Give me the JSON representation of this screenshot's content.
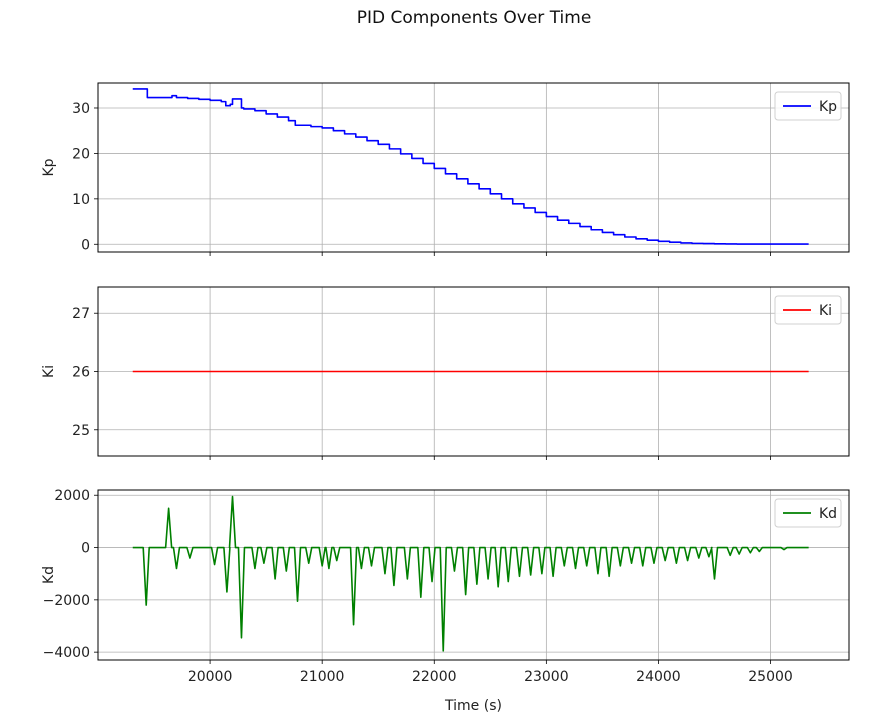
{
  "figure": {
    "title": "PID Components Over Time"
  },
  "chart_data": [
    {
      "type": "line",
      "ylabel": "Kp",
      "xlabel": "",
      "xlim": [
        19000,
        25700
      ],
      "ylim": [
        -1.7,
        35.5
      ],
      "xticks": [
        20000,
        21000,
        22000,
        23000,
        24000,
        25000
      ],
      "yticks": [
        0,
        10,
        20,
        30
      ],
      "grid": true,
      "legend": "top-right",
      "series": [
        {
          "name": "Kp",
          "color": "#0000ff",
          "step": true,
          "x": [
            19310,
            19400,
            19440,
            19550,
            19600,
            19660,
            19700,
            19800,
            19900,
            20000,
            20100,
            20140,
            20180,
            20200,
            20280,
            20300,
            20400,
            20500,
            20600,
            20700,
            20760,
            20900,
            21000,
            21100,
            21200,
            21300,
            21400,
            21500,
            21600,
            21700,
            21800,
            21900,
            22000,
            22100,
            22200,
            22300,
            22400,
            22500,
            22600,
            22700,
            22800,
            22900,
            23000,
            23100,
            23200,
            23300,
            23400,
            23500,
            23600,
            23700,
            23800,
            23900,
            24000,
            24100,
            24200,
            24300,
            24400,
            24500,
            24600,
            24700,
            24800,
            24900,
            25000,
            25340
          ],
          "y": [
            34.2,
            34.2,
            32.3,
            32.3,
            32.3,
            32.7,
            32.3,
            32.1,
            31.9,
            31.7,
            31.4,
            30.5,
            30.8,
            32.0,
            30.0,
            29.8,
            29.4,
            28.7,
            28.0,
            27.2,
            26.2,
            25.9,
            25.6,
            25.0,
            24.3,
            23.6,
            22.8,
            22.0,
            21.0,
            19.9,
            18.9,
            17.8,
            16.7,
            15.5,
            14.4,
            13.3,
            12.2,
            11.1,
            10.0,
            8.9,
            8.0,
            7.0,
            6.1,
            5.3,
            4.6,
            3.9,
            3.2,
            2.6,
            2.1,
            1.6,
            1.2,
            0.9,
            0.65,
            0.45,
            0.3,
            0.2,
            0.15,
            0.1,
            0.08,
            0.05,
            0.05,
            0.05,
            0.05,
            0.05
          ]
        }
      ]
    },
    {
      "type": "line",
      "ylabel": "Ki",
      "xlabel": "",
      "xlim": [
        19000,
        25700
      ],
      "ylim": [
        24.55,
        27.45
      ],
      "xticks": [
        20000,
        21000,
        22000,
        23000,
        24000,
        25000
      ],
      "yticks": [
        25,
        26,
        27
      ],
      "grid": true,
      "legend": "top-right",
      "series": [
        {
          "name": "Ki",
          "color": "#ff0000",
          "x": [
            19310,
            25340
          ],
          "y": [
            26,
            26
          ]
        }
      ]
    },
    {
      "type": "line",
      "ylabel": "Kd",
      "xlabel": "Time (s)",
      "xlim": [
        19000,
        25700
      ],
      "ylim": [
        -4300,
        2200
      ],
      "xticks": [
        20000,
        21000,
        22000,
        23000,
        24000,
        25000
      ],
      "yticks": [
        -4000,
        -2000,
        0,
        2000
      ],
      "grid": true,
      "legend": "top-right",
      "series": [
        {
          "name": "Kd",
          "color": "#008000",
          "baseline": 0,
          "start": 19310,
          "end": 25340,
          "spikes": [
            {
              "x": 19430,
              "y": -2200
            },
            {
              "x": 19630,
              "y": 1500
            },
            {
              "x": 19700,
              "y": -800
            },
            {
              "x": 19820,
              "y": -400
            },
            {
              "x": 20040,
              "y": -650
            },
            {
              "x": 20150,
              "y": -1700
            },
            {
              "x": 20200,
              "y": 1950
            },
            {
              "x": 20280,
              "y": -3450
            },
            {
              "x": 20400,
              "y": -800
            },
            {
              "x": 20480,
              "y": -600
            },
            {
              "x": 20580,
              "y": -1200
            },
            {
              "x": 20680,
              "y": -900
            },
            {
              "x": 20780,
              "y": -2050
            },
            {
              "x": 20880,
              "y": -600
            },
            {
              "x": 21000,
              "y": -700
            },
            {
              "x": 21060,
              "y": -800
            },
            {
              "x": 21130,
              "y": -500
            },
            {
              "x": 21280,
              "y": -2950
            },
            {
              "x": 21350,
              "y": -800
            },
            {
              "x": 21440,
              "y": -700
            },
            {
              "x": 21560,
              "y": -1000
            },
            {
              "x": 21640,
              "y": -1450
            },
            {
              "x": 21760,
              "y": -1200
            },
            {
              "x": 21880,
              "y": -1900
            },
            {
              "x": 21980,
              "y": -1300
            },
            {
              "x": 22080,
              "y": -3950
            },
            {
              "x": 22180,
              "y": -900
            },
            {
              "x": 22280,
              "y": -1800
            },
            {
              "x": 22380,
              "y": -1400
            },
            {
              "x": 22480,
              "y": -1200
            },
            {
              "x": 22570,
              "y": -1500
            },
            {
              "x": 22660,
              "y": -1300
            },
            {
              "x": 22760,
              "y": -1100
            },
            {
              "x": 22860,
              "y": -1050
            },
            {
              "x": 22960,
              "y": -1000
            },
            {
              "x": 23060,
              "y": -1100
            },
            {
              "x": 23160,
              "y": -700
            },
            {
              "x": 23260,
              "y": -800
            },
            {
              "x": 23360,
              "y": -700
            },
            {
              "x": 23460,
              "y": -1000
            },
            {
              "x": 23560,
              "y": -1100
            },
            {
              "x": 23660,
              "y": -700
            },
            {
              "x": 23760,
              "y": -600
            },
            {
              "x": 23860,
              "y": -700
            },
            {
              "x": 23960,
              "y": -600
            },
            {
              "x": 24060,
              "y": -500
            },
            {
              "x": 24160,
              "y": -600
            },
            {
              "x": 24260,
              "y": -500
            },
            {
              "x": 24360,
              "y": -400
            },
            {
              "x": 24450,
              "y": -350
            },
            {
              "x": 24500,
              "y": -1200
            },
            {
              "x": 24640,
              "y": -300
            },
            {
              "x": 24720,
              "y": -250
            },
            {
              "x": 24820,
              "y": -200
            },
            {
              "x": 24900,
              "y": -150
            },
            {
              "x": 25120,
              "y": -80
            }
          ]
        }
      ]
    }
  ]
}
